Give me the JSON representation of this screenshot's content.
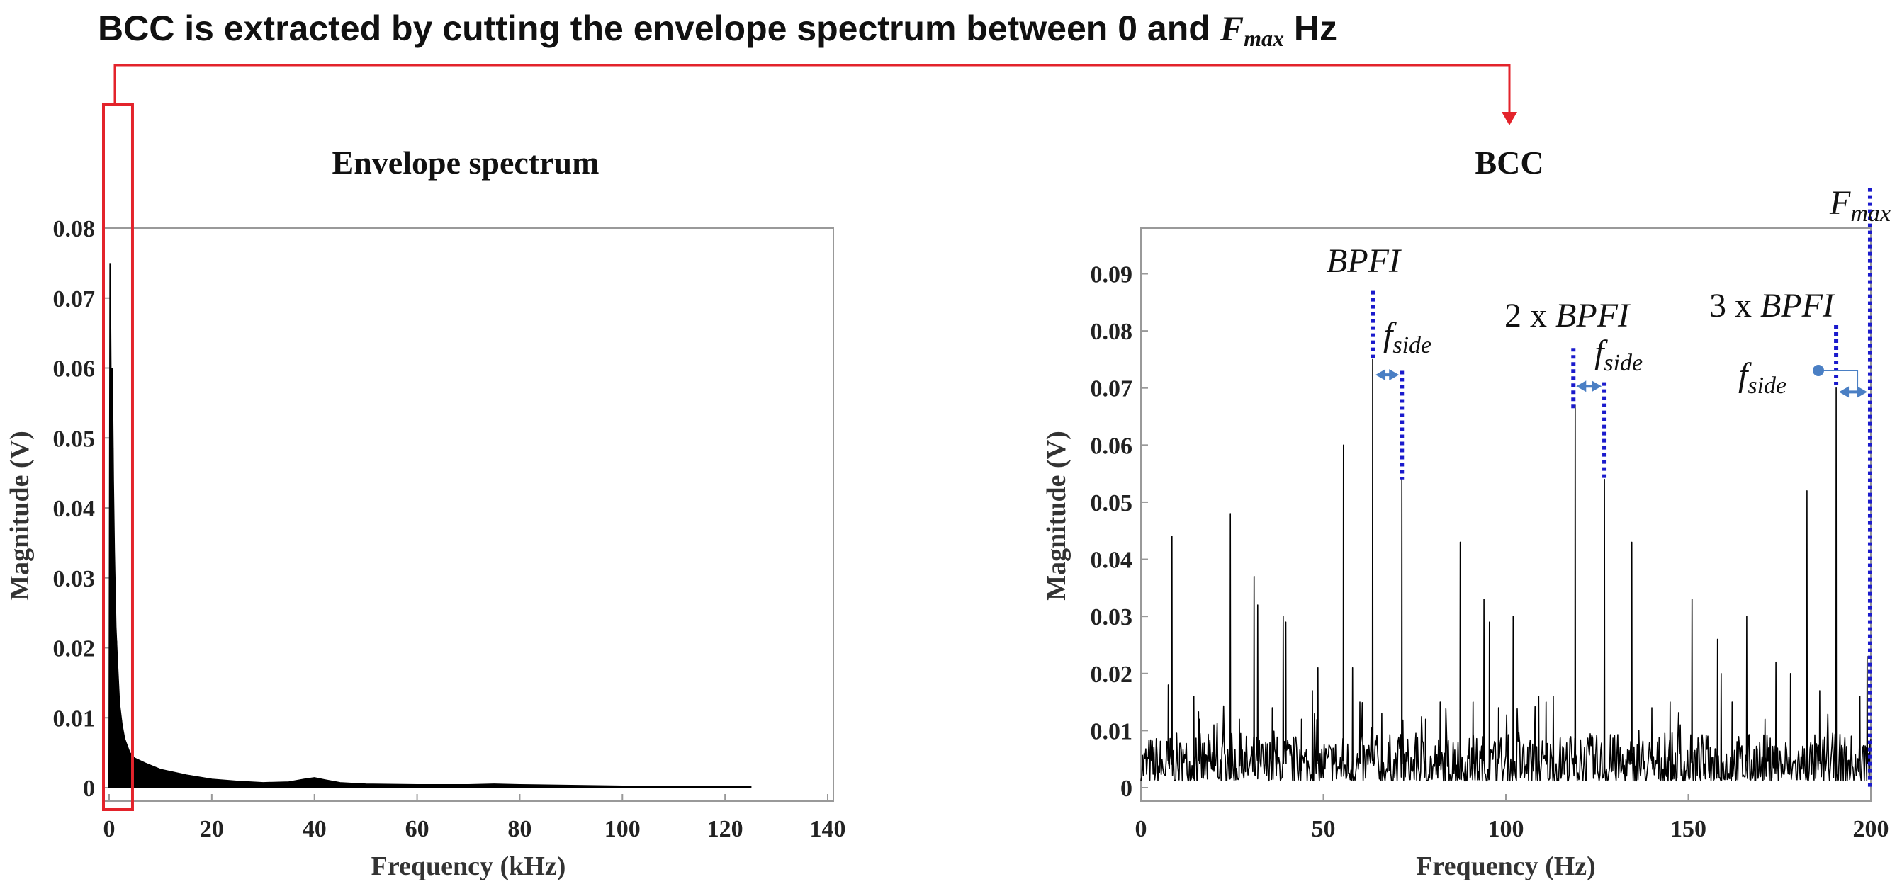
{
  "headline": {
    "text_before": "BCC is extracted by cutting the envelope spectrum between 0 and ",
    "fmax_main": "F",
    "fmax_sub": "max",
    "text_after": " Hz"
  },
  "colors": {
    "selection_box": "#e3232b",
    "marker_blue": "#1a1acc",
    "arrow_blue": "#4a7fc4",
    "trace": "#000000"
  },
  "chart_data": [
    {
      "type": "line",
      "title": "Envelope spectrum",
      "xlabel": "Frequency (kHz)",
      "ylabel": "Magnitude (V)",
      "xlim": [
        0,
        140
      ],
      "ylim": [
        0,
        0.08
      ],
      "xticks": [
        0,
        20,
        40,
        60,
        80,
        100,
        120,
        140
      ],
      "xtick_labels": [
        "0",
        "20",
        "40",
        "60",
        "80",
        "100",
        "120",
        "140"
      ],
      "yticks": [
        0,
        0.01,
        0.02,
        0.03,
        0.04,
        0.05,
        0.06,
        0.07,
        0.08
      ],
      "ytick_labels": [
        "0",
        "0.01",
        "0.02",
        "0.03",
        "0.04",
        "0.05",
        "0.06",
        "0.07",
        "0.08"
      ],
      "series": [
        {
          "name": "envelope",
          "x": [
            0,
            0.2,
            0.4,
            0.6,
            0.8,
            1.0,
            1.3,
            1.6,
            2.0,
            2.5,
            3.0,
            4.0,
            5.0,
            7.0,
            10,
            15,
            20,
            25,
            30,
            35,
            38,
            40,
            42,
            45,
            50,
            60,
            70,
            75,
            80,
            90,
            100,
            110,
            120,
            125
          ],
          "y": [
            0.003,
            0.075,
            0.052,
            0.06,
            0.044,
            0.034,
            0.023,
            0.018,
            0.012,
            0.009,
            0.007,
            0.005,
            0.0042,
            0.0035,
            0.0026,
            0.0018,
            0.0012,
            0.0009,
            0.0007,
            0.0008,
            0.0012,
            0.0014,
            0.0011,
            0.0007,
            0.0005,
            0.0004,
            0.0004,
            0.0005,
            0.0004,
            0.0003,
            0.0002,
            0.0002,
            0.0002,
            0.0001
          ]
        }
      ],
      "selection": {
        "x_from": 0,
        "x_to": 4
      }
    },
    {
      "type": "line",
      "title": "BCC",
      "xlabel": "Frequency (Hz)",
      "ylabel": "Magnitude (V)",
      "xlim": [
        0,
        200
      ],
      "ylim": [
        0,
        0.098
      ],
      "xticks": [
        0,
        50,
        100,
        150,
        200
      ],
      "xtick_labels": [
        "0",
        "50",
        "100",
        "150",
        "200"
      ],
      "yticks": [
        0,
        0.01,
        0.02,
        0.03,
        0.04,
        0.05,
        0.06,
        0.07,
        0.08,
        0.09
      ],
      "ytick_labels": [
        "0",
        "0.01",
        "0.02",
        "0.03",
        "0.04",
        "0.05",
        "0.06",
        "0.07",
        "0.08",
        "0.09"
      ],
      "noise_floor": 0.006,
      "peaks": [
        {
          "x": 7.5,
          "y": 0.018
        },
        {
          "x": 8.5,
          "y": 0.044
        },
        {
          "x": 14.5,
          "y": 0.016
        },
        {
          "x": 16,
          "y": 0.012
        },
        {
          "x": 20,
          "y": 0.011
        },
        {
          "x": 24.5,
          "y": 0.048
        },
        {
          "x": 27,
          "y": 0.012
        },
        {
          "x": 31,
          "y": 0.037
        },
        {
          "x": 32,
          "y": 0.032
        },
        {
          "x": 36,
          "y": 0.014
        },
        {
          "x": 39,
          "y": 0.03
        },
        {
          "x": 39.7,
          "y": 0.029
        },
        {
          "x": 44,
          "y": 0.012
        },
        {
          "x": 47,
          "y": 0.017
        },
        {
          "x": 48.5,
          "y": 0.021
        },
        {
          "x": 55.5,
          "y": 0.06
        },
        {
          "x": 58,
          "y": 0.021
        },
        {
          "x": 60,
          "y": 0.015
        },
        {
          "x": 63.5,
          "y": 0.075
        },
        {
          "x": 66,
          "y": 0.013
        },
        {
          "x": 71.5,
          "y": 0.054
        },
        {
          "x": 78,
          "y": 0.012
        },
        {
          "x": 82,
          "y": 0.015
        },
        {
          "x": 87.5,
          "y": 0.043
        },
        {
          "x": 91,
          "y": 0.015
        },
        {
          "x": 94,
          "y": 0.033
        },
        {
          "x": 95.5,
          "y": 0.029
        },
        {
          "x": 98,
          "y": 0.014
        },
        {
          "x": 102,
          "y": 0.03
        },
        {
          "x": 109,
          "y": 0.016
        },
        {
          "x": 111,
          "y": 0.015
        },
        {
          "x": 113,
          "y": 0.016
        },
        {
          "x": 119,
          "y": 0.067
        },
        {
          "x": 127,
          "y": 0.054
        },
        {
          "x": 134.5,
          "y": 0.043
        },
        {
          "x": 140,
          "y": 0.014
        },
        {
          "x": 145,
          "y": 0.015
        },
        {
          "x": 151,
          "y": 0.033
        },
        {
          "x": 158,
          "y": 0.026
        },
        {
          "x": 159,
          "y": 0.02
        },
        {
          "x": 162,
          "y": 0.015
        },
        {
          "x": 166,
          "y": 0.03
        },
        {
          "x": 171,
          "y": 0.012
        },
        {
          "x": 174,
          "y": 0.022
        },
        {
          "x": 178,
          "y": 0.02
        },
        {
          "x": 182.5,
          "y": 0.052
        },
        {
          "x": 186,
          "y": 0.017
        },
        {
          "x": 190.5,
          "y": 0.07
        },
        {
          "x": 197,
          "y": 0.016
        },
        {
          "x": 199,
          "y": 0.023
        }
      ],
      "markers": [
        {
          "x": 63.5,
          "y_top": 0.087,
          "y_bottom": 0.075
        },
        {
          "x": 71.5,
          "y_top": 0.073,
          "y_bottom": 0.054
        },
        {
          "x": 118.5,
          "y_top": 0.077,
          "y_bottom": 0.066
        },
        {
          "x": 127,
          "y_top": 0.071,
          "y_bottom": 0.054
        },
        {
          "x": 190.5,
          "y_top": 0.081,
          "y_bottom": 0.07
        },
        {
          "x": 199.8,
          "y_top": 0.105,
          "y_bottom": 0
        }
      ],
      "sideband_arrows": [
        {
          "x1": 63.5,
          "x2": 71.5,
          "y": 0.0723
        },
        {
          "x1": 118.5,
          "x2": 127,
          "y": 0.0703
        },
        {
          "x1": 190.5,
          "x2": 199.8,
          "y": 0.0693
        }
      ],
      "annotations": {
        "bpfi_1": "BPFI",
        "bpfi_2_prefix": "2 x ",
        "bpfi_2": "BPFI",
        "bpfi_3_prefix": "3 x ",
        "bpfi_3": "BPFI",
        "fside_main": "f",
        "fside_sub": "side",
        "fmax_main": "F",
        "fmax_sub": "max"
      }
    }
  ]
}
